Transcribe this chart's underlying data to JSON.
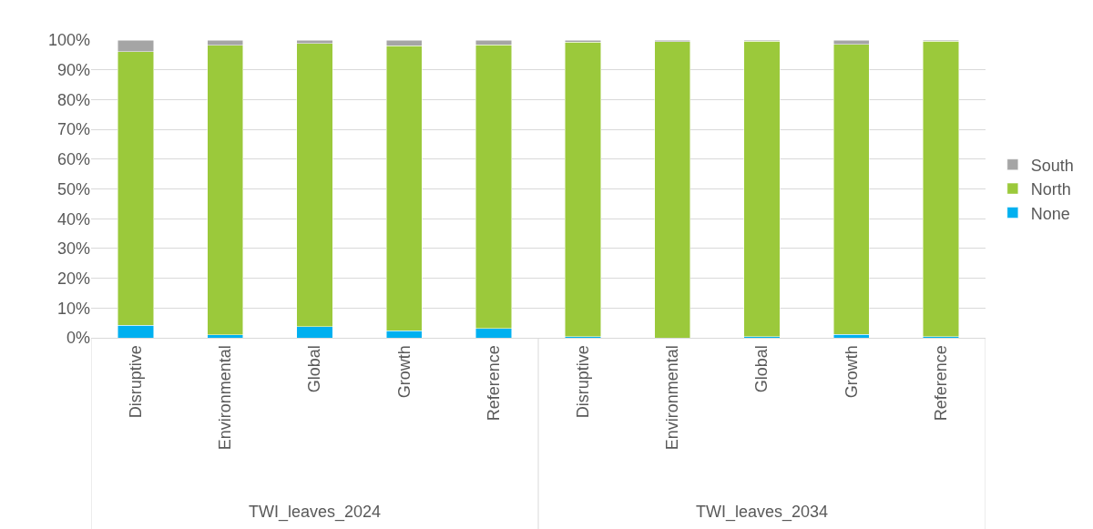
{
  "chart_data": {
    "type": "bar",
    "stacked": true,
    "categories": [
      "Disruptive",
      "Environmental",
      "Global",
      "Growth",
      "Reference",
      "Disruptive",
      "Environmental",
      "Global",
      "Growth",
      "Reference"
    ],
    "annotations": [
      "TWI_leaves_2024",
      "TWI_leaves_2034"
    ],
    "series": [
      {
        "name": "None",
        "color": "#00b0f0",
        "values": [
          4.2,
          1.0,
          3.8,
          2.4,
          3.2,
          0.4,
          null,
          0.4,
          1.1,
          0.4
        ]
      },
      {
        "name": "North",
        "color": "#9bc93b",
        "values": [
          91.9,
          97.3,
          95.1,
          95.7,
          95.2,
          98.9,
          99.4,
          99.2,
          97.5,
          99.2
        ]
      },
      {
        "name": "South",
        "color": "#a5a5a5",
        "values": [
          3.9,
          1.7,
          1.1,
          1.9,
          1.6,
          0.7,
          0.5,
          0.4,
          1.4,
          0.4
        ]
      }
    ],
    "ylim": [
      0,
      100
    ],
    "yticks": [
      {
        "value": 0,
        "label": "0%"
      },
      {
        "value": 10,
        "label": "10%"
      },
      {
        "value": 20,
        "label": "20%"
      },
      {
        "value": 30,
        "label": "30%"
      },
      {
        "value": 40,
        "label": "40%"
      },
      {
        "value": 50,
        "label": "50%"
      },
      {
        "value": 60,
        "label": "60%"
      },
      {
        "value": 70,
        "label": "70%"
      },
      {
        "value": 80,
        "label": "80%"
      },
      {
        "value": 90,
        "label": "90%"
      },
      {
        "value": 100,
        "label": "100%"
      }
    ],
    "grid": "y",
    "legend": "right"
  }
}
